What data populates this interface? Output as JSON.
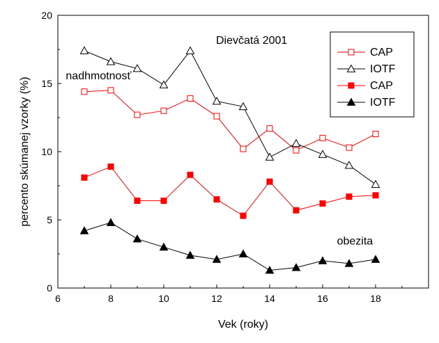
{
  "chart_data": {
    "type": "line",
    "title": "Dievčatá 2001",
    "xlabel": "Vek (roky)",
    "ylabel": "percento skúmanej vzorky (%)",
    "xlim": [
      6,
      20
    ],
    "ylim": [
      0,
      20
    ],
    "xticks": [
      6,
      8,
      10,
      12,
      14,
      16,
      18
    ],
    "yticks": [
      0,
      5,
      10,
      15,
      20
    ],
    "x": [
      7,
      8,
      9,
      10,
      11,
      12,
      13,
      14,
      15,
      16,
      17,
      18
    ],
    "annotations": [
      {
        "text": "nadhmotnosť",
        "x": 6.3,
        "y": 15.3
      },
      {
        "text": "obezita",
        "x": 17.9,
        "y": 3.2
      }
    ],
    "legend_position": "top-right",
    "grid": false,
    "series": [
      {
        "name": "CAP",
        "color": "#ff0000",
        "marker": "square-open",
        "values": [
          14.4,
          14.5,
          12.7,
          13.0,
          13.9,
          12.6,
          10.2,
          11.7,
          10.1,
          11.0,
          10.3,
          11.3
        ]
      },
      {
        "name": "IOTF",
        "color": "#000000",
        "marker": "triangle-open",
        "values": [
          17.4,
          16.6,
          16.1,
          14.9,
          17.4,
          13.7,
          13.3,
          9.6,
          10.6,
          9.8,
          9.0,
          7.6
        ]
      },
      {
        "name": "CAP",
        "color": "#ff0000",
        "marker": "square-filled",
        "values": [
          8.1,
          8.9,
          6.4,
          6.4,
          8.3,
          6.5,
          5.3,
          7.8,
          5.7,
          6.2,
          6.7,
          6.8
        ]
      },
      {
        "name": "IOTF",
        "color": "#000000",
        "marker": "triangle-filled",
        "values": [
          4.2,
          4.8,
          3.6,
          3.0,
          2.4,
          2.1,
          2.5,
          1.3,
          1.5,
          2.0,
          1.8,
          2.1
        ]
      }
    ]
  }
}
